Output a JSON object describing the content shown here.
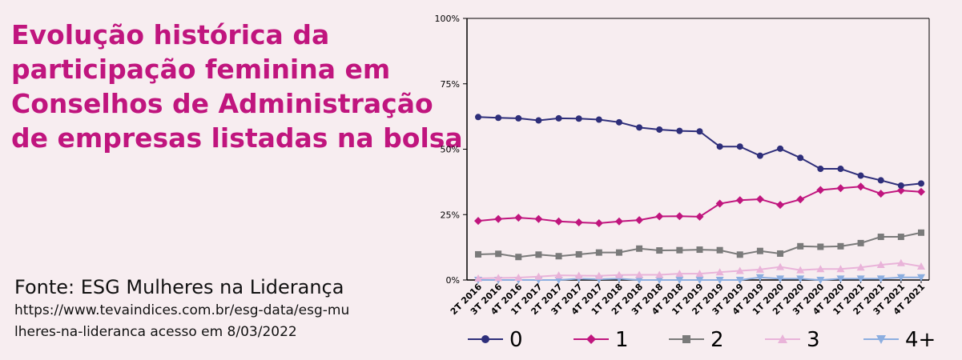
{
  "title_lines": [
    "Evolução histórica da",
    "participação feminina em",
    "Conselhos de Administração",
    "de empresas listadas na bolsa"
  ],
  "source": {
    "name": "Fonte: ESG Mulheres na Liderança",
    "url_line1": "https://www.tevaindices.com.br/esg-data/esg-mu",
    "url_line2": "lheres-na-lideranca acesso em 8/03/2022"
  },
  "colors": {
    "title": "#c0157e",
    "background": "#f7edf0"
  },
  "chart_data": {
    "type": "line",
    "categories": [
      "2T 2016",
      "3T 2016",
      "4T 2016",
      "1T 2017",
      "2T 2017",
      "3T 2017",
      "4T 2017",
      "1T 2018",
      "2T 2018",
      "3T 2018",
      "4T 2018",
      "1T 2019",
      "2T 2019",
      "3T 2019",
      "4T 2019",
      "1T 2020",
      "2T 2020",
      "3T 2020",
      "4T 2020",
      "1T 2021",
      "2T 2021",
      "3T 2021",
      "4T 2021"
    ],
    "yticks": [
      "0%",
      "25%",
      "50%",
      "75%",
      "100%"
    ],
    "ylim": [
      0,
      100
    ],
    "legend_position": "bottom",
    "series": [
      {
        "name": "0",
        "color": "#2e2e7a",
        "marker": "circle",
        "values": [
          62.3,
          62.0,
          61.8,
          61.0,
          61.8,
          61.7,
          61.3,
          60.3,
          58.3,
          57.5,
          57.0,
          56.8,
          51.0,
          51.0,
          47.5,
          50.2,
          46.7,
          42.5,
          42.5,
          39.9,
          38.1,
          36.1,
          36.9
        ]
      },
      {
        "name": "1",
        "color": "#c0157e",
        "marker": "diamond",
        "values": [
          22.6,
          23.3,
          23.8,
          23.3,
          22.4,
          22.0,
          21.7,
          22.4,
          22.9,
          24.3,
          24.4,
          24.2,
          29.2,
          30.5,
          30.9,
          28.7,
          30.8,
          34.4,
          35.1,
          35.7,
          33.0,
          34.2,
          33.7
        ]
      },
      {
        "name": "2",
        "color": "#7a7a7a",
        "marker": "square",
        "values": [
          9.8,
          10.0,
          8.8,
          9.7,
          9.1,
          9.8,
          10.5,
          10.5,
          12.0,
          11.3,
          11.4,
          11.6,
          11.4,
          9.7,
          11.1,
          10.1,
          12.9,
          12.7,
          12.9,
          14.1,
          16.5,
          16.5,
          18.1
        ]
      },
      {
        "name": "3",
        "color": "#e9b3d9",
        "marker": "triangle-up",
        "values": [
          0.6,
          0.8,
          0.9,
          1.3,
          1.8,
          1.7,
          1.6,
          1.9,
          2.0,
          2.0,
          2.4,
          2.4,
          3.0,
          3.5,
          4.0,
          5.0,
          3.8,
          4.2,
          4.2,
          4.8,
          5.8,
          6.5,
          5.2
        ]
      },
      {
        "name": "4+",
        "color": "#8caee0",
        "marker": "triangle-down",
        "values": [
          0.0,
          0.0,
          0.0,
          0.0,
          0.0,
          0.5,
          0.3,
          0.5,
          0.0,
          0.0,
          0.0,
          0.0,
          0.0,
          0.0,
          1.0,
          0.5,
          0.5,
          0.0,
          0.5,
          0.5,
          0.5,
          1.0,
          1.0
        ]
      }
    ]
  }
}
